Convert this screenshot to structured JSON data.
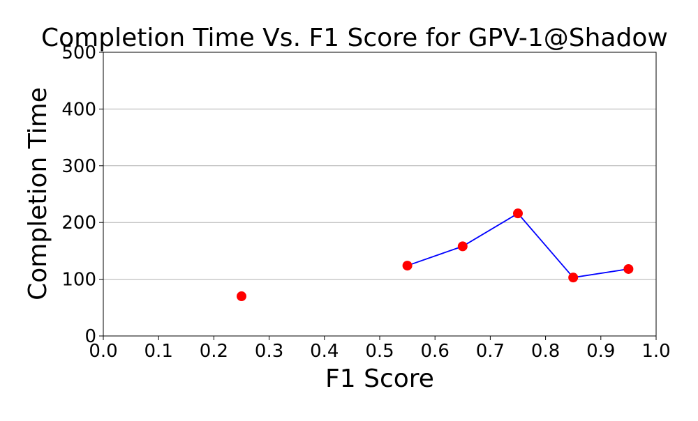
{
  "chart_data": {
    "type": "line",
    "title": "Completion Time Vs. F1 Score for GPV-1@Shadow",
    "xlabel": "F1 Score",
    "ylabel": "Completion Time",
    "xlim": [
      0.0,
      1.0
    ],
    "ylim": [
      0,
      500
    ],
    "x_ticks": [
      "0.0",
      "0.1",
      "0.2",
      "0.3",
      "0.4",
      "0.5",
      "0.6",
      "0.7",
      "0.8",
      "0.9",
      "1.0"
    ],
    "y_ticks": [
      "0",
      "100",
      "200",
      "300",
      "400",
      "500"
    ],
    "grid": "horizontal",
    "series": [
      {
        "x": [
          0.25,
          0.35,
          0.45,
          0.55,
          0.65,
          0.75,
          0.85,
          0.95
        ],
        "y": [
          70,
          null,
          null,
          124,
          158,
          216,
          103,
          118
        ],
        "line_color": "#0000ff",
        "marker_color": "#ff0000"
      }
    ]
  }
}
